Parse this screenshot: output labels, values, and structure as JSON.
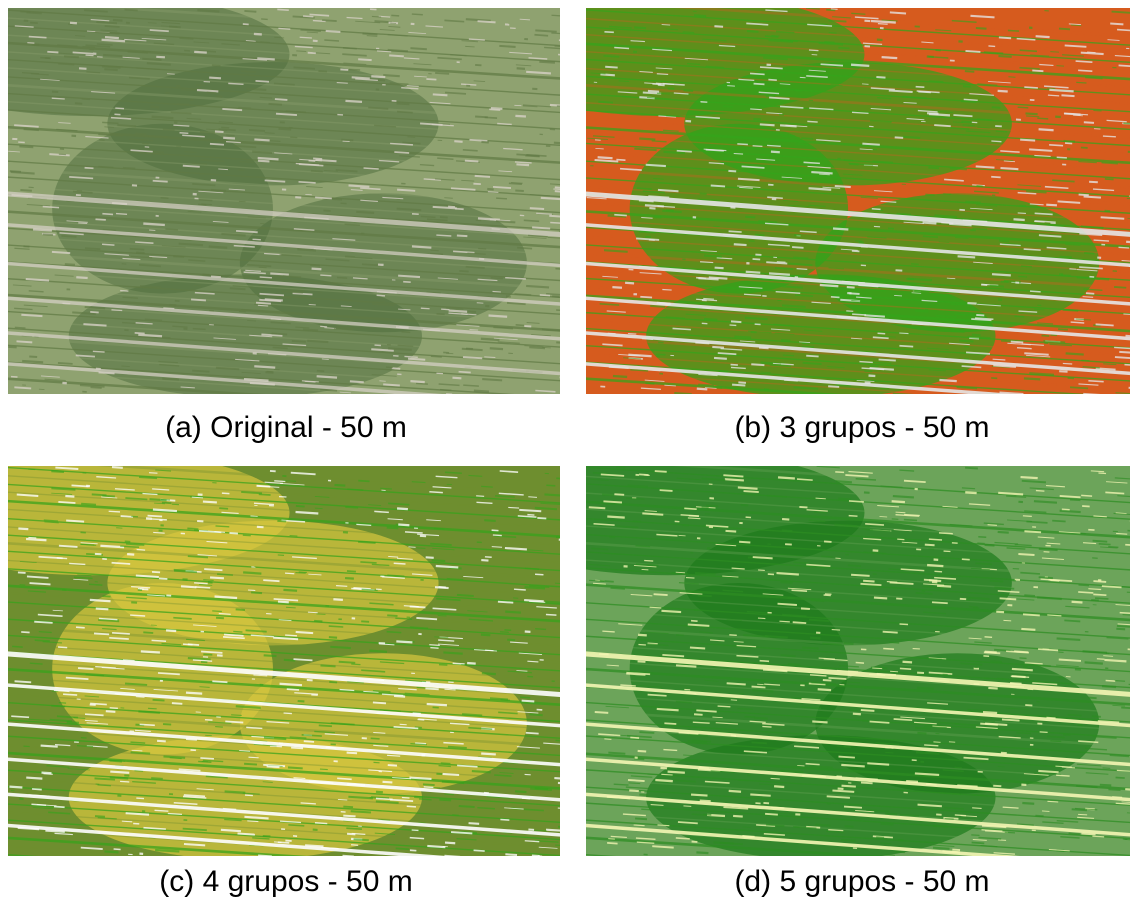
{
  "figure": {
    "panels": [
      {
        "id": "a",
        "caption": "(a) Original - 50 m",
        "colors": {
          "base": "#8fa270",
          "row": "#617a45",
          "soil": "#d8d2c8",
          "patch": "#4f6d3d"
        }
      },
      {
        "id": "b",
        "caption": "(b) 3 grupos - 50 m",
        "colors": {
          "base": "#d65b1e",
          "row": "#35a51b",
          "soil": "#e6e6e6",
          "patch": "#2fa31a"
        }
      },
      {
        "id": "c",
        "caption": "(c) 4 grupos - 50 m",
        "colors": {
          "base": "#6e8e2f",
          "row": "#36a31b",
          "soil": "#ffffff",
          "patch": "#d7c63e"
        }
      },
      {
        "id": "d",
        "caption": "(d) 5 grupos - 50 m",
        "colors": {
          "base": "#6ca45a",
          "row": "#2d8d22",
          "soil": "#f5f7b4",
          "patch": "#1f7b1c"
        }
      }
    ]
  }
}
